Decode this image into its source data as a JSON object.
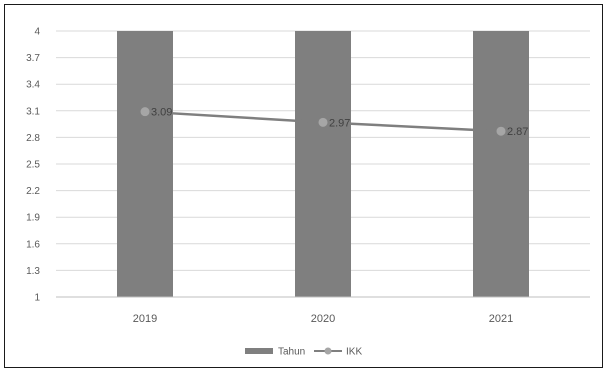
{
  "chart_data": {
    "type": "bar+line",
    "categories": [
      "2019",
      "2020",
      "2021"
    ],
    "series": [
      {
        "name": "Tahun",
        "type": "bar",
        "values": [
          4,
          4,
          4
        ],
        "color": "#7f7f7f"
      },
      {
        "name": "IKK",
        "type": "line",
        "values": [
          3.09,
          2.97,
          2.87
        ],
        "labels": [
          "3.09",
          "2.97",
          "2.87"
        ],
        "color": "#7f7f7f",
        "marker_color": "#a6a6a6"
      }
    ],
    "ylim": [
      1,
      4
    ],
    "yticks": [
      "1",
      "1.3",
      "1.6",
      "1.9",
      "2.2",
      "2.5",
      "2.8",
      "3.1",
      "3.4",
      "3.7",
      "4"
    ],
    "grid": true,
    "legend": "bottom",
    "title": "",
    "xlabel": "",
    "ylabel": ""
  }
}
